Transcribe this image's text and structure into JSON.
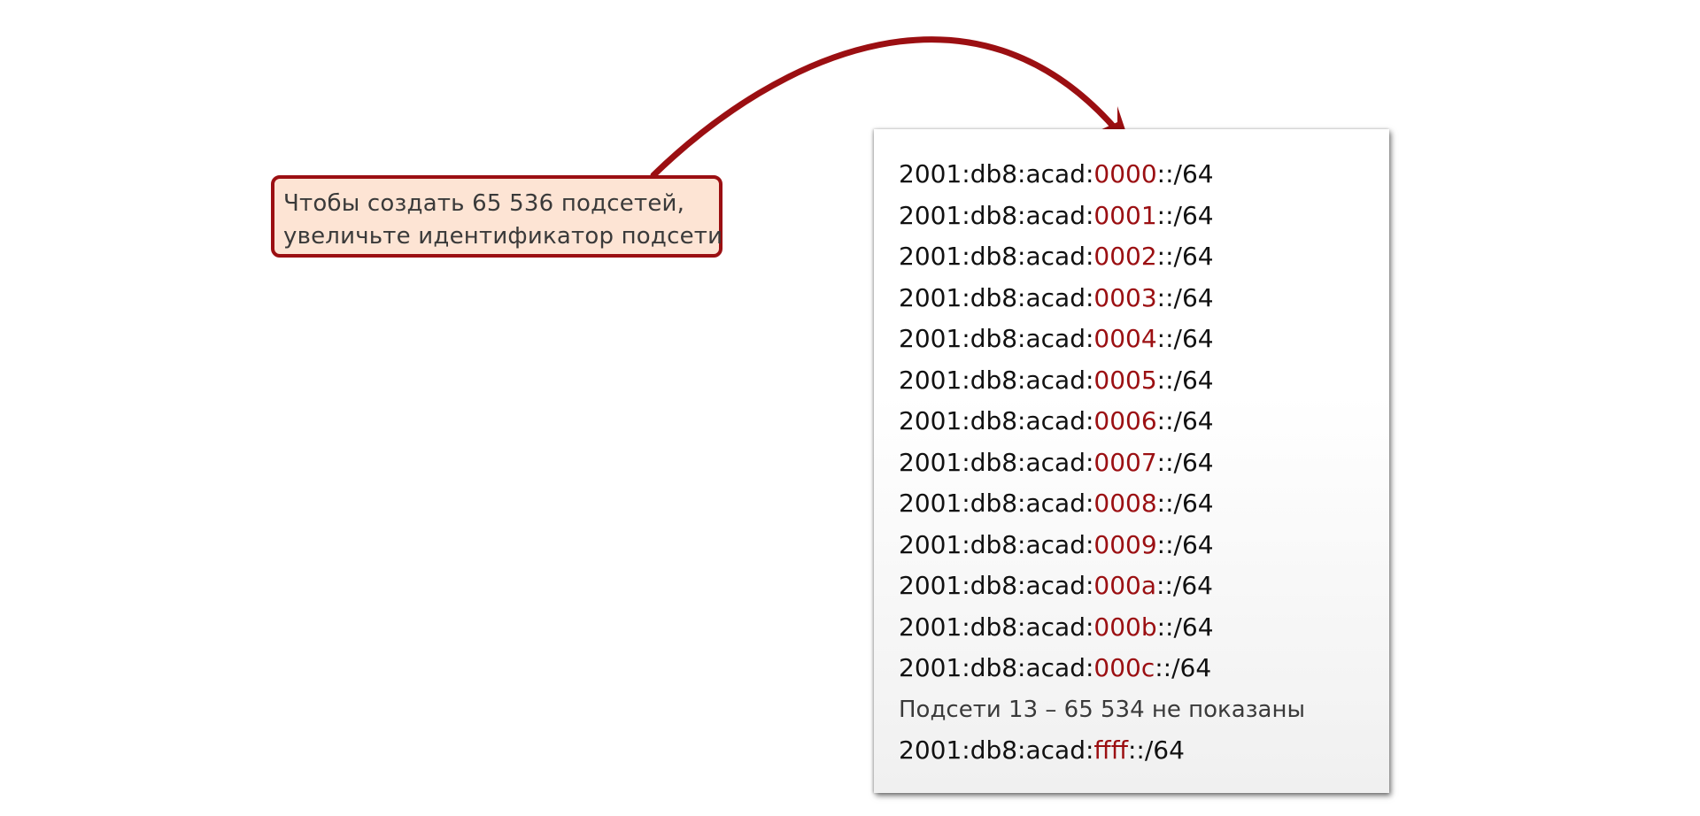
{
  "callout": {
    "line1": "Чтобы создать 65 536 подсетей,",
    "line2": "увеличьте идентификатор подсети"
  },
  "colors": {
    "accent": "#9b0f12",
    "callout_fill": "#fde4d4",
    "text": "#111111"
  },
  "subnets": [
    {
      "prefix": "2001:db8:acad:",
      "id": "0000",
      "suffix": "::/64"
    },
    {
      "prefix": "2001:db8:acad:",
      "id": "0001",
      "suffix": "::/64"
    },
    {
      "prefix": "2001:db8:acad:",
      "id": "0002",
      "suffix": "::/64"
    },
    {
      "prefix": "2001:db8:acad:",
      "id": "0003",
      "suffix": "::/64"
    },
    {
      "prefix": "2001:db8:acad:",
      "id": "0004",
      "suffix": "::/64"
    },
    {
      "prefix": "2001:db8:acad:",
      "id": "0005",
      "suffix": "::/64"
    },
    {
      "prefix": "2001:db8:acad:",
      "id": "0006",
      "suffix": "::/64"
    },
    {
      "prefix": "2001:db8:acad:",
      "id": "0007",
      "suffix": "::/64"
    },
    {
      "prefix": "2001:db8:acad:",
      "id": "0008",
      "suffix": "::/64"
    },
    {
      "prefix": "2001:db8:acad:",
      "id": "0009",
      "suffix": "::/64"
    },
    {
      "prefix": "2001:db8:acad:",
      "id": "000a",
      "suffix": "::/64"
    },
    {
      "prefix": "2001:db8:acad:",
      "id": "000b",
      "suffix": "::/64"
    },
    {
      "prefix": "2001:db8:acad:",
      "id": "000c",
      "suffix": "::/64"
    }
  ],
  "note": "Подсети 13 – 65 534 не показаны",
  "last_subnet": {
    "prefix": "2001:db8:acad:",
    "id": "ffff",
    "suffix": "::/64"
  }
}
